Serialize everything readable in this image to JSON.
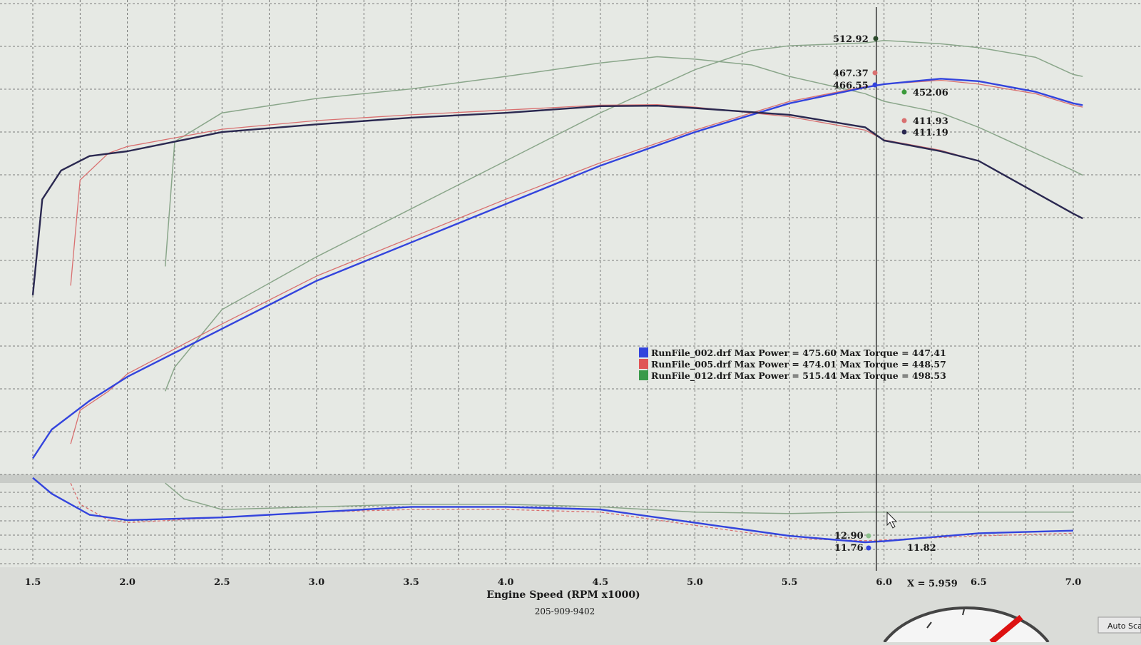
{
  "colors": {
    "series_002": "#3344dd",
    "series_005": "#d97070",
    "series_012": "#8aa68a",
    "torque_002": "#2a2850",
    "cursor": "#333333",
    "grid": "#5a5a5a"
  },
  "chart_data": {
    "type": "line",
    "xlabel": "Engine Speed (RPM x1000)",
    "footer": "205-909-9402",
    "x_ticks": [
      "1.5",
      "2.0",
      "2.5",
      "3.0",
      "3.5",
      "4.0",
      "4.5",
      "5.0",
      "5.5",
      "6.0",
      "6.5",
      "7.0"
    ],
    "xlim": [
      1.5,
      7.0
    ],
    "grid": true,
    "legend": {
      "placement": "center",
      "entries": [
        {
          "series": "002",
          "text": "RunFile_002.drf Max Power = 475.60 Max Torque = 447.41"
        },
        {
          "series": "005",
          "text": "RunFile_005.drf Max Power = 474.01 Max Torque = 448.57"
        },
        {
          "series": "012",
          "text": "RunFile_012.drf Max Power = 515.44 Max Torque = 498.53"
        }
      ]
    },
    "cursor": {
      "x": 5.959,
      "label": "X = 5.959"
    },
    "cursor_values": {
      "top": [
        {
          "series": "012",
          "text": "512.92"
        },
        {
          "series": "005",
          "text": "467.37"
        },
        {
          "series": "002",
          "text": "466.55"
        },
        {
          "series": "012",
          "text": "452.06"
        },
        {
          "series": "005",
          "text": "411.93"
        },
        {
          "series": "002",
          "text": "411.19"
        }
      ],
      "bottom": [
        {
          "series": "012",
          "text": "12.90"
        },
        {
          "series": "002",
          "text": "11.76"
        },
        {
          "series": "005",
          "text": "11.82"
        }
      ]
    },
    "series": [
      {
        "id": "002",
        "kind": "power",
        "x": [
          1.5,
          1.6,
          1.8,
          2.0,
          2.5,
          3.0,
          3.5,
          4.0,
          4.5,
          5.0,
          5.5,
          5.9,
          6.0,
          6.3,
          6.5,
          6.8,
          7.0,
          7.05
        ],
        "y": [
          80,
          110,
          140,
          165,
          215,
          265,
          305,
          345,
          385,
          420,
          450,
          466.55,
          470,
          475.6,
          473,
          462,
          450,
          448
        ]
      },
      {
        "id": "005",
        "kind": "power",
        "x": [
          1.7,
          1.75,
          1.9,
          2.0,
          2.5,
          3.0,
          3.5,
          4.0,
          4.5,
          5.0,
          5.5,
          5.9,
          6.0,
          6.3,
          6.5,
          6.8,
          7.0,
          7.05
        ],
        "y": [
          95,
          130,
          150,
          168,
          220,
          270,
          310,
          350,
          388,
          422,
          452,
          467.37,
          470,
          474,
          470,
          460,
          448,
          446
        ]
      },
      {
        "id": "012",
        "kind": "power",
        "x": [
          2.2,
          2.25,
          2.5,
          3.0,
          3.5,
          4.0,
          4.5,
          5.0,
          5.3,
          5.5,
          5.9,
          6.0,
          6.3,
          6.5,
          6.8,
          7.0,
          7.05
        ],
        "y": [
          150,
          175,
          235,
          290,
          340,
          390,
          440,
          485,
          505,
          510,
          512.92,
          515.44,
          512,
          508,
          498,
          480,
          478
        ]
      },
      {
        "id": "002",
        "kind": "torque",
        "x": [
          1.5,
          1.55,
          1.65,
          1.8,
          2.0,
          2.5,
          3.0,
          3.5,
          4.0,
          4.5,
          4.8,
          5.0,
          5.5,
          5.9,
          6.0,
          6.3,
          6.5,
          7.0,
          7.05
        ],
        "y": [
          250,
          350,
          380,
          395,
          400,
          420,
          428,
          435,
          440,
          447,
          447.41,
          445,
          438,
          425,
          411.19,
          400,
          390,
          335,
          330
        ]
      },
      {
        "id": "005",
        "kind": "torque",
        "x": [
          1.7,
          1.75,
          1.9,
          2.0,
          2.5,
          3.0,
          3.5,
          4.0,
          4.5,
          4.8,
          5.0,
          5.5,
          5.9,
          6.0,
          6.3,
          6.5,
          7.0,
          7.05
        ],
        "y": [
          260,
          370,
          398,
          405,
          423,
          432,
          438,
          443,
          448,
          448.57,
          446,
          436,
          422,
          411.93,
          401,
          390,
          335,
          330
        ]
      },
      {
        "id": "012",
        "kind": "torque",
        "x": [
          2.2,
          2.25,
          2.5,
          3.0,
          3.5,
          4.0,
          4.5,
          4.8,
          5.0,
          5.3,
          5.5,
          5.9,
          6.0,
          6.3,
          6.5,
          7.0,
          7.05
        ],
        "y": [
          280,
          410,
          440,
          455,
          465,
          478,
          492,
          498.53,
          496,
          490,
          478,
          460,
          452.06,
          440,
          425,
          380,
          375
        ]
      },
      {
        "id": "002",
        "kind": "afr",
        "x": [
          1.5,
          1.6,
          1.8,
          2.0,
          2.5,
          3.0,
          3.5,
          4.0,
          4.5,
          5.0,
          5.5,
          5.9,
          6.0,
          6.5,
          7.0
        ],
        "y": [
          14.2,
          13.6,
          12.8,
          12.6,
          12.7,
          12.9,
          13.1,
          13.1,
          13.0,
          12.5,
          12.0,
          11.76,
          11.8,
          12.1,
          12.2
        ]
      },
      {
        "id": "005",
        "kind": "afr",
        "x": [
          1.7,
          1.75,
          1.9,
          2.0,
          2.5,
          3.0,
          3.5,
          4.0,
          4.5,
          5.0,
          5.5,
          5.9,
          6.0,
          6.5,
          7.0
        ],
        "y": [
          14.0,
          13.2,
          12.6,
          12.5,
          12.7,
          12.9,
          13.0,
          13.0,
          12.9,
          12.4,
          11.9,
          11.82,
          11.85,
          12.0,
          12.1
        ]
      },
      {
        "id": "012",
        "kind": "afr",
        "x": [
          2.2,
          2.3,
          2.5,
          3.0,
          3.5,
          4.0,
          4.5,
          5.0,
          5.5,
          5.9,
          6.0,
          6.5,
          7.0
        ],
        "y": [
          14.0,
          13.4,
          13.0,
          13.1,
          13.2,
          13.2,
          13.1,
          12.9,
          12.85,
          12.9,
          12.9,
          12.9,
          12.9
        ]
      }
    ]
  },
  "corner_button": {
    "label": "Auto Sca"
  }
}
